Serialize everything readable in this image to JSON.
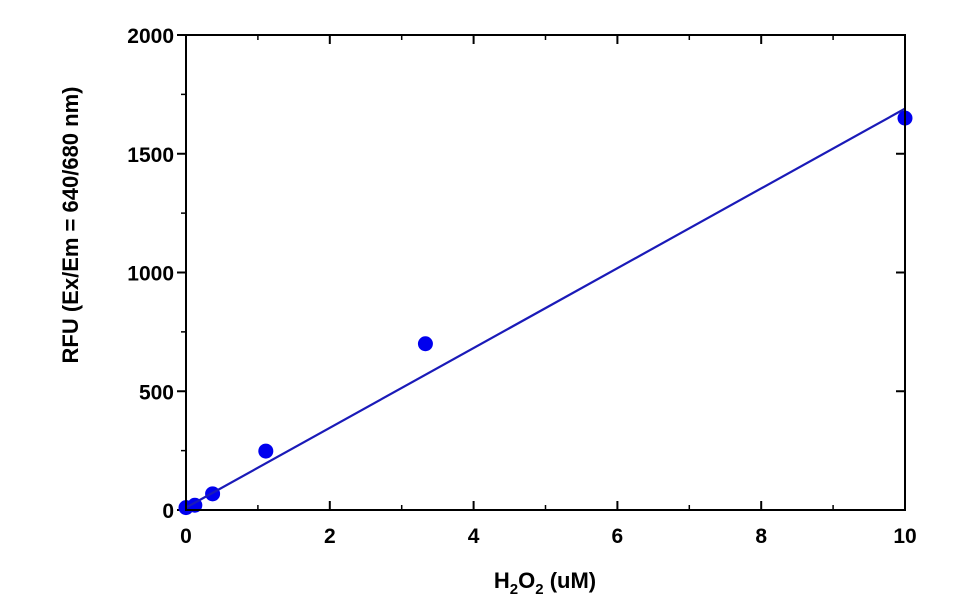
{
  "chart_data": {
    "type": "scatter",
    "xlabel": "H2O2 (uM)",
    "xlabel_parts": {
      "prefix": "H",
      "sub1": "2",
      "mid": "O",
      "sub2": "2",
      "suffix": " (uM)"
    },
    "ylabel": "RFU (Ex/Em = 640/680 nm)",
    "xlim": [
      0,
      10
    ],
    "ylim": [
      0,
      2000
    ],
    "x_ticks": [
      0,
      2,
      4,
      6,
      8,
      10
    ],
    "y_ticks": [
      0,
      500,
      1000,
      1500,
      2000
    ],
    "x_minor_step": 1,
    "y_minor_step": 250,
    "grid": false,
    "series": [
      {
        "kind": "points",
        "color": "#0000ee",
        "x": [
          0,
          0.123,
          0.37,
          1.11,
          3.33,
          10
        ],
        "y": [
          10,
          20,
          68,
          248,
          700,
          1650
        ]
      },
      {
        "kind": "fit-line",
        "color": "#1a1ab8",
        "x": [
          0,
          10
        ],
        "y": [
          10,
          1690
        ]
      }
    ]
  }
}
